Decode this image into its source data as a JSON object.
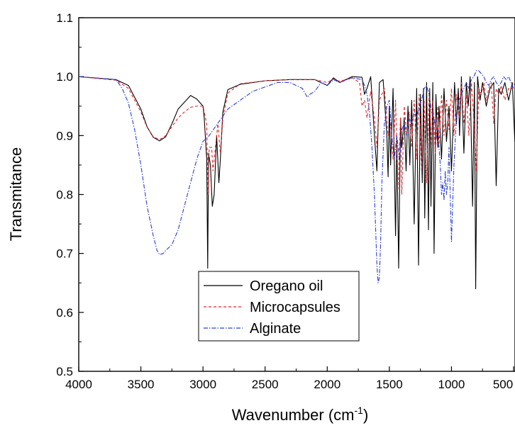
{
  "chart_data": {
    "type": "line",
    "xlabel": "Wavenumber (cm",
    "xlabel_sup": "-1",
    "xlabel_close": ")",
    "ylabel": "Transmitance",
    "xlim": [
      4000,
      400
    ],
    "ylim": [
      0.5,
      1.1
    ],
    "x_reversed": true,
    "x_ticks": [
      "4000",
      "3500",
      "3000",
      "2500",
      "2000",
      "1500",
      "1000",
      "500"
    ],
    "y_ticks": [
      "0.5",
      "0.6",
      "0.7",
      "0.8",
      "0.9",
      "1.0",
      "1.1"
    ],
    "grid": false,
    "legend_position": "bottom-center",
    "series": [
      {
        "name": "Oregano oil",
        "color": "#000000",
        "style": "solid",
        "x": [
          4000,
          3700,
          3600,
          3500,
          3450,
          3400,
          3350,
          3300,
          3250,
          3200,
          3100,
          3050,
          3000,
          2990,
          2970,
          2962,
          2955,
          2940,
          2925,
          2910,
          2890,
          2872,
          2860,
          2840,
          2800,
          2700,
          2500,
          2300,
          2100,
          2000,
          1950,
          1900,
          1800,
          1720,
          1700,
          1680,
          1650,
          1620,
          1600,
          1590,
          1580,
          1550,
          1520,
          1510,
          1500,
          1490,
          1470,
          1450,
          1440,
          1425,
          1410,
          1400,
          1380,
          1365,
          1350,
          1335,
          1320,
          1300,
          1280,
          1265,
          1250,
          1235,
          1225,
          1215,
          1200,
          1185,
          1175,
          1165,
          1150,
          1140,
          1125,
          1110,
          1100,
          1080,
          1060,
          1040,
          1020,
          1000,
          990,
          975,
          960,
          945,
          935,
          920,
          900,
          880,
          865,
          850,
          830,
          815,
          805,
          790,
          770,
          750,
          720,
          690,
          660,
          640,
          620,
          600,
          570,
          540,
          510,
          490,
          470,
          450,
          420,
          400
        ],
        "y": [
          1.0,
          0.995,
          0.985,
          0.945,
          0.915,
          0.897,
          0.891,
          0.898,
          0.92,
          0.945,
          0.968,
          0.962,
          0.95,
          0.93,
          0.86,
          0.675,
          0.87,
          0.85,
          0.78,
          0.8,
          0.9,
          0.82,
          0.86,
          0.94,
          0.978,
          0.987,
          0.993,
          0.995,
          0.995,
          0.985,
          0.998,
          0.99,
          1.0,
          0.999,
          0.97,
          0.98,
          1.0,
          0.9,
          0.84,
          0.92,
          0.99,
          0.995,
          0.9,
          0.83,
          0.95,
          0.85,
          0.98,
          0.73,
          0.9,
          0.675,
          0.93,
          0.88,
          0.93,
          0.84,
          0.95,
          0.85,
          0.96,
          0.75,
          0.98,
          0.68,
          0.97,
          0.82,
          0.98,
          0.76,
          0.99,
          0.74,
          0.98,
          0.78,
          0.99,
          0.7,
          0.97,
          0.88,
          0.95,
          0.86,
          0.98,
          0.89,
          0.95,
          0.84,
          0.9,
          0.99,
          0.92,
          0.98,
          0.9,
          1.0,
          0.87,
          0.99,
          0.95,
          1.0,
          0.78,
          0.99,
          0.64,
          1.0,
          0.96,
          0.99,
          0.95,
          0.98,
          0.99,
          0.815,
          0.98,
          0.97,
          0.99,
          0.96,
          0.99,
          0.89,
          0.98,
          0.99,
          0.97,
          0.99
        ]
      },
      {
        "name": "Microcapsules",
        "color": "#e8262b",
        "style": "dashed",
        "x": [
          4000,
          3700,
          3600,
          3500,
          3450,
          3400,
          3350,
          3300,
          3250,
          3200,
          3150,
          3100,
          3050,
          3000,
          2970,
          2960,
          2950,
          2930,
          2920,
          2900,
          2880,
          2860,
          2840,
          2800,
          2700,
          2500,
          2300,
          2100,
          2000,
          1950,
          1900,
          1800,
          1740,
          1720,
          1700,
          1680,
          1650,
          1620,
          1600,
          1580,
          1560,
          1540,
          1510,
          1490,
          1470,
          1450,
          1430,
          1410,
          1400,
          1380,
          1360,
          1340,
          1320,
          1300,
          1280,
          1260,
          1240,
          1220,
          1200,
          1180,
          1160,
          1150,
          1130,
          1110,
          1100,
          1080,
          1060,
          1040,
          1020,
          1000,
          980,
          960,
          940,
          920,
          900,
          880,
          860,
          840,
          820,
          800,
          780,
          760,
          740,
          720,
          700,
          680,
          660,
          640,
          620,
          600,
          570,
          540,
          510,
          490,
          470,
          450,
          420,
          400
        ],
        "y": [
          1.0,
          0.994,
          0.98,
          0.94,
          0.914,
          0.898,
          0.893,
          0.9,
          0.915,
          0.93,
          0.94,
          0.948,
          0.95,
          0.95,
          0.92,
          0.8,
          0.88,
          0.88,
          0.84,
          0.88,
          0.92,
          0.87,
          0.93,
          0.972,
          0.988,
          0.993,
          0.995,
          0.995,
          0.99,
          0.996,
          0.992,
          0.998,
          0.99,
          0.95,
          0.96,
          0.93,
          0.975,
          0.93,
          0.88,
          0.96,
          0.97,
          0.98,
          0.9,
          0.92,
          0.86,
          0.96,
          0.81,
          0.93,
          0.8,
          0.95,
          0.9,
          0.94,
          0.88,
          0.96,
          0.86,
          0.97,
          0.84,
          0.96,
          0.82,
          0.97,
          0.88,
          0.96,
          0.87,
          0.95,
          0.88,
          0.97,
          0.9,
          0.96,
          0.91,
          0.98,
          0.9,
          0.97,
          0.93,
          0.99,
          0.92,
          0.97,
          0.9,
          0.99,
          0.93,
          0.84,
          0.98,
          0.97,
          0.99,
          0.96,
          0.98,
          0.99,
          0.92,
          0.98,
          0.97,
          0.985,
          0.96,
          0.98,
          0.98,
          0.99,
          0.97,
          1.0,
          1.0,
          1.0
        ]
      },
      {
        "name": "Alginate",
        "color": "#2b3fd6",
        "style": "dashdot",
        "x": [
          4000,
          3700,
          3650,
          3600,
          3550,
          3500,
          3450,
          3400,
          3370,
          3350,
          3320,
          3300,
          3250,
          3200,
          3150,
          3100,
          3050,
          3000,
          2950,
          2900,
          2800,
          2600,
          2400,
          2300,
          2200,
          2160,
          2140,
          2100,
          2050,
          2000,
          1950,
          1900,
          1800,
          1720,
          1700,
          1680,
          1660,
          1640,
          1620,
          1600,
          1590,
          1580,
          1570,
          1560,
          1540,
          1520,
          1500,
          1480,
          1460,
          1440,
          1420,
          1410,
          1400,
          1380,
          1360,
          1340,
          1320,
          1300,
          1280,
          1260,
          1240,
          1220,
          1200,
          1180,
          1160,
          1140,
          1120,
          1100,
          1090,
          1080,
          1070,
          1060,
          1050,
          1040,
          1030,
          1020,
          1000,
          980,
          960,
          940,
          920,
          900,
          880,
          860,
          840,
          820,
          800,
          780,
          760,
          740,
          720,
          700,
          680,
          660,
          640,
          620,
          600,
          580,
          560,
          540,
          520,
          500,
          480,
          460,
          440,
          430,
          420,
          410,
          400
        ],
        "y": [
          1.0,
          0.995,
          0.98,
          0.955,
          0.91,
          0.85,
          0.78,
          0.73,
          0.705,
          0.698,
          0.7,
          0.705,
          0.715,
          0.74,
          0.78,
          0.82,
          0.86,
          0.89,
          0.9,
          0.915,
          0.945,
          0.975,
          0.99,
          0.99,
          0.98,
          0.965,
          0.97,
          0.975,
          0.99,
          0.985,
          0.995,
          0.99,
          0.998,
          0.995,
          0.985,
          0.97,
          0.94,
          0.88,
          0.8,
          0.68,
          0.65,
          0.66,
          0.72,
          0.82,
          0.92,
          0.95,
          0.96,
          0.9,
          0.86,
          0.9,
          0.86,
          0.88,
          0.91,
          0.92,
          0.9,
          0.93,
          0.92,
          0.94,
          0.93,
          0.95,
          0.96,
          0.98,
          0.985,
          0.97,
          0.94,
          0.93,
          0.9,
          0.88,
          0.85,
          0.8,
          0.82,
          0.79,
          0.84,
          0.8,
          0.82,
          0.88,
          0.72,
          0.85,
          0.93,
          0.96,
          0.97,
          0.98,
          0.99,
          0.98,
          0.995,
          1.0,
          1.01,
          1.01,
          1.005,
          1.0,
          0.99,
          0.985,
          0.995,
          1.0,
          0.99,
          0.985,
          0.99,
          1.0,
          0.995,
          1.0,
          0.99,
          0.98,
          0.985,
          0.99,
          1.0,
          1.05,
          1.06,
          1.05,
          1.04
        ]
      }
    ]
  }
}
